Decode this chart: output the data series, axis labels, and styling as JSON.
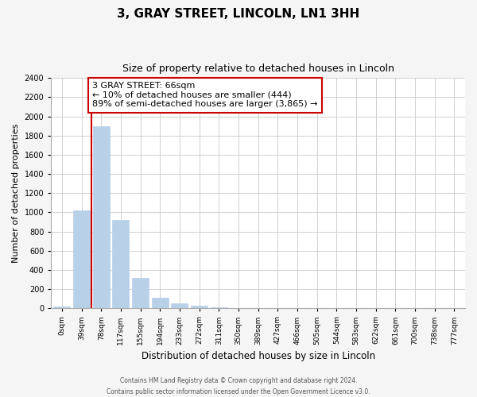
{
  "title": "3, GRAY STREET, LINCOLN, LN1 3HH",
  "subtitle": "Size of property relative to detached houses in Lincoln",
  "xlabel": "Distribution of detached houses by size in Lincoln",
  "ylabel": "Number of detached properties",
  "bar_labels": [
    "0sqm",
    "39sqm",
    "78sqm",
    "117sqm",
    "155sqm",
    "194sqm",
    "233sqm",
    "272sqm",
    "311sqm",
    "350sqm",
    "389sqm",
    "427sqm",
    "466sqm",
    "505sqm",
    "544sqm",
    "583sqm",
    "622sqm",
    "661sqm",
    "700sqm",
    "738sqm",
    "777sqm"
  ],
  "bar_values": [
    20,
    1020,
    1900,
    920,
    320,
    110,
    50,
    25,
    10,
    0,
    0,
    0,
    0,
    0,
    0,
    0,
    0,
    0,
    0,
    0,
    0
  ],
  "bar_color": "#b8d0e8",
  "bar_edge_color": "#b8d0e8",
  "vline_color": "#cc0000",
  "annotation_line1": "3 GRAY STREET: 66sqm",
  "annotation_line2": "← 10% of detached houses are smaller (444)",
  "annotation_line3": "89% of semi-detached houses are larger (3,865) →",
  "annotation_box_color": "#ffffff",
  "annotation_box_edge": "#cc0000",
  "ylim": [
    0,
    2400
  ],
  "yticks": [
    0,
    200,
    400,
    600,
    800,
    1000,
    1200,
    1400,
    1600,
    1800,
    2000,
    2200,
    2400
  ],
  "footer_line1": "Contains HM Land Registry data © Crown copyright and database right 2024.",
  "footer_line2": "Contains public sector information licensed under the Open Government Licence v3.0.",
  "bg_color": "#f5f5f5",
  "plot_bg_color": "#ffffff",
  "grid_color": "#d0d0d0"
}
